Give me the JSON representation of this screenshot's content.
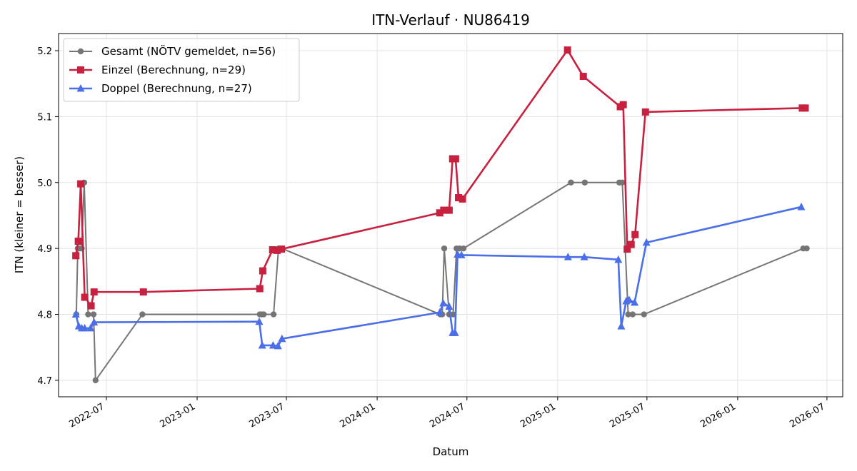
{
  "chart_data": {
    "type": "line",
    "title": "ITN-Verlauf · NU86419",
    "xlabel": "Datum",
    "ylabel": "ITN  (kleiner = besser)",
    "xlim": [
      "2022-03-26",
      "2026-08-02"
    ],
    "ylim": [
      4.675,
      5.226
    ],
    "x_ticks": [
      "2022-07-01",
      "2023-01-01",
      "2023-07-01",
      "2024-01-01",
      "2024-07-01",
      "2025-01-01",
      "2025-07-01",
      "2026-01-01",
      "2026-07-01"
    ],
    "x_tick_labels": [
      "2022-07",
      "2023-01",
      "2023-07",
      "2024-01",
      "2024-07",
      "2025-01",
      "2025-07",
      "2026-01",
      "2026-07"
    ],
    "y_ticks": [
      4.7,
      4.8,
      4.9,
      5.0,
      5.1,
      5.2
    ],
    "y_tick_labels": [
      "4.7",
      "4.8",
      "4.9",
      "5.0",
      "5.1",
      "5.2"
    ],
    "grid": true,
    "legend_position": "top-left",
    "series": [
      {
        "name": "Gesamt (NÖTV gemeldet, n=56)",
        "color": "#555555",
        "marker": "circle",
        "points": [
          [
            "2022-05-01",
            4.8
          ],
          [
            "2022-05-04",
            4.9
          ],
          [
            "2022-05-08",
            4.9
          ],
          [
            "2022-05-12",
            4.9
          ],
          [
            "2022-05-17",
            5.0
          ],
          [
            "2022-05-25",
            4.8
          ],
          [
            "2022-06-05",
            4.8
          ],
          [
            "2022-06-09",
            4.7
          ],
          [
            "2022-09-12",
            4.8
          ],
          [
            "2023-05-08",
            4.8
          ],
          [
            "2023-05-12",
            4.8
          ],
          [
            "2023-05-16",
            4.8
          ],
          [
            "2023-06-05",
            4.8
          ],
          [
            "2023-06-15",
            4.9
          ],
          [
            "2023-06-22",
            4.9
          ],
          [
            "2024-05-08",
            4.8
          ],
          [
            "2024-05-12",
            4.8
          ],
          [
            "2024-05-16",
            4.9
          ],
          [
            "2024-05-26",
            4.8
          ],
          [
            "2024-06-03",
            4.8
          ],
          [
            "2024-06-10",
            4.9
          ],
          [
            "2024-06-16",
            4.9
          ],
          [
            "2024-06-24",
            4.9
          ],
          [
            "2025-01-28",
            5.0
          ],
          [
            "2025-02-25",
            5.0
          ],
          [
            "2025-05-06",
            5.0
          ],
          [
            "2025-05-12",
            5.0
          ],
          [
            "2025-05-24",
            4.8
          ],
          [
            "2025-06-02",
            4.8
          ],
          [
            "2025-06-25",
            4.8
          ],
          [
            "2026-05-14",
            4.9
          ],
          [
            "2026-05-21",
            4.9
          ]
        ]
      },
      {
        "name": "Einzel (Berechnung, n=29)",
        "color": "#c8203f",
        "marker": "square",
        "points": [
          [
            "2022-04-30",
            4.889
          ],
          [
            "2022-05-05",
            4.911
          ],
          [
            "2022-05-10",
            4.998
          ],
          [
            "2022-05-18",
            4.826
          ],
          [
            "2022-05-31",
            4.813
          ],
          [
            "2022-06-06",
            4.834
          ],
          [
            "2022-09-14",
            4.834
          ],
          [
            "2023-05-08",
            4.839
          ],
          [
            "2023-05-14",
            4.866
          ],
          [
            "2023-06-03",
            4.898
          ],
          [
            "2023-06-12",
            4.897
          ],
          [
            "2023-06-21",
            4.899
          ],
          [
            "2024-05-07",
            4.954
          ],
          [
            "2024-05-15",
            4.958
          ],
          [
            "2024-05-26",
            4.958
          ],
          [
            "2024-06-02",
            5.036
          ],
          [
            "2024-06-08",
            5.036
          ],
          [
            "2024-06-14",
            4.977
          ],
          [
            "2024-06-22",
            4.975
          ],
          [
            "2025-01-21",
            5.201
          ],
          [
            "2025-02-22",
            5.161
          ],
          [
            "2025-05-08",
            5.115
          ],
          [
            "2025-05-14",
            5.118
          ],
          [
            "2025-05-22",
            4.899
          ],
          [
            "2025-05-30",
            4.906
          ],
          [
            "2025-06-07",
            4.921
          ],
          [
            "2025-06-28",
            5.107
          ],
          [
            "2026-05-12",
            5.113
          ],
          [
            "2026-05-18",
            5.113
          ]
        ]
      },
      {
        "name": "Doppel (Berechnung, n=27)",
        "color": "#4a6fe8",
        "marker": "triangle",
        "points": [
          [
            "2022-04-30",
            4.8
          ],
          [
            "2022-05-06",
            4.782
          ],
          [
            "2022-05-12",
            4.779
          ],
          [
            "2022-05-18",
            4.779
          ],
          [
            "2022-05-30",
            4.779
          ],
          [
            "2022-06-06",
            4.788
          ],
          [
            "2023-05-07",
            4.789
          ],
          [
            "2023-05-13",
            4.753
          ],
          [
            "2023-06-04",
            4.753
          ],
          [
            "2023-06-14",
            4.752
          ],
          [
            "2023-06-22",
            4.763
          ],
          [
            "2024-05-07",
            4.803
          ],
          [
            "2024-05-14",
            4.817
          ],
          [
            "2024-05-26",
            4.812
          ],
          [
            "2024-06-02",
            4.772
          ],
          [
            "2024-06-07",
            4.772
          ],
          [
            "2024-06-12",
            4.891
          ],
          [
            "2024-06-20",
            4.89
          ],
          [
            "2025-01-22",
            4.887
          ],
          [
            "2025-02-24",
            4.887
          ],
          [
            "2025-05-04",
            4.883
          ],
          [
            "2025-05-10",
            4.782
          ],
          [
            "2025-05-20",
            4.82
          ],
          [
            "2025-05-26",
            4.822
          ],
          [
            "2025-06-06",
            4.818
          ],
          [
            "2025-06-30",
            4.909
          ],
          [
            "2026-05-10",
            4.963
          ]
        ]
      }
    ]
  }
}
